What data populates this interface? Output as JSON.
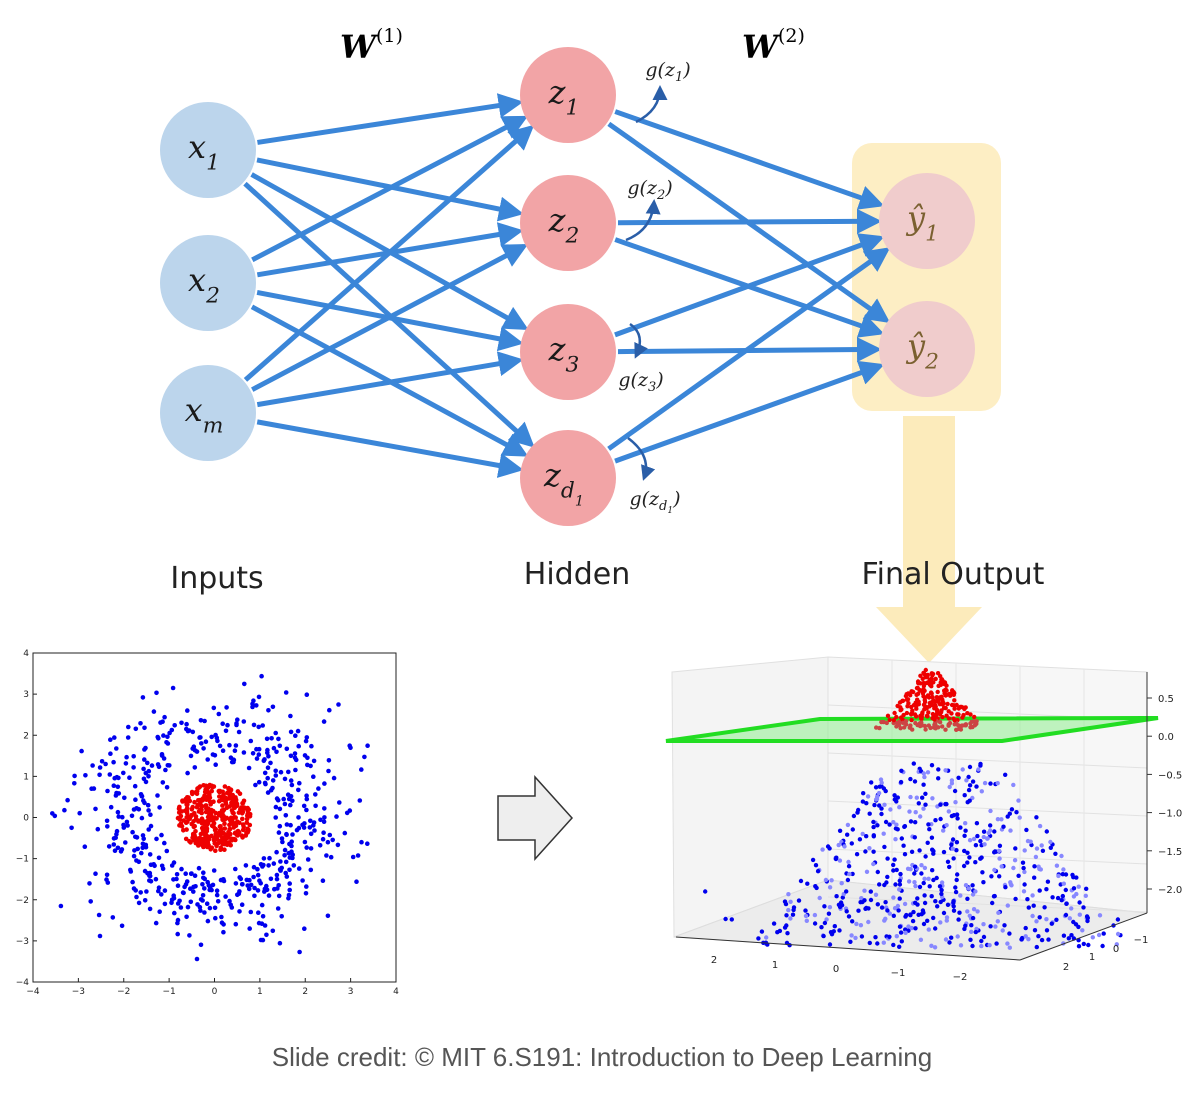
{
  "network": {
    "weights": [
      {
        "base": "W",
        "sup": "(1)"
      },
      {
        "base": "W",
        "sup": "(2)"
      }
    ],
    "inputs": [
      {
        "base": "x",
        "sub": "1"
      },
      {
        "base": "x",
        "sub": "2"
      },
      {
        "base": "x",
        "sub": "m"
      }
    ],
    "hidden": [
      {
        "base": "z",
        "sub": "1"
      },
      {
        "base": "z",
        "sub": "2"
      },
      {
        "base": "z",
        "sub": "3"
      },
      {
        "base": "z",
        "sub": "d",
        "subsub": "1"
      }
    ],
    "outputs": [
      {
        "base": "ŷ",
        "sub": "1"
      },
      {
        "base": "ŷ",
        "sub": "2"
      }
    ],
    "activations": [
      {
        "fn": "g(",
        "base": "z",
        "sub": "1",
        "close": ")"
      },
      {
        "fn": "g(",
        "base": "z",
        "sub": "2",
        "close": ")"
      },
      {
        "fn": "g(",
        "base": "z",
        "sub": "3",
        "close": ")"
      },
      {
        "fn": "g(",
        "base": "z",
        "sub": "d",
        "subsub": "1",
        "close": ")"
      }
    ],
    "layer_labels": {
      "inputs": "Inputs",
      "hidden": "Hidden",
      "output": "Final Output"
    },
    "colors": {
      "input_node": "#bcd5ec",
      "hidden_node": "#f2a4a6",
      "output_node": "#f0cccc",
      "edge": "#3b86d8",
      "highlight": "#fdeec4"
    }
  },
  "chart_data": [
    {
      "type": "scatter",
      "series": [
        {
          "color": "#0000ee",
          "values": [
            [
              -2.4,
              1.3
            ],
            [
              -1.9,
              2.2
            ],
            [
              -1.5,
              -1.8
            ],
            [
              1.8,
              1.4
            ],
            [
              2.5,
              -0.6
            ],
            [
              0.2,
              -2.6
            ],
            [
              -0.6,
              2.6
            ],
            [
              1.2,
              -1.9
            ]
          ]
        },
        {
          "color": "#ee0000",
          "values": [
            [
              0.0,
              0.0
            ],
            [
              0.4,
              0.3
            ],
            [
              -0.5,
              0.2
            ],
            [
              0.2,
              -0.6
            ],
            [
              -0.3,
              -0.4
            ]
          ]
        }
      ],
      "xlim": [
        -4,
        4
      ],
      "ylim": [
        -4,
        4
      ],
      "xticks": [
        "−4",
        "−3",
        "−2",
        "−1",
        "0",
        "1",
        "2",
        "3",
        "4"
      ],
      "yticks": [
        "4",
        "3",
        "2",
        "1",
        "0",
        "−1",
        "−2",
        "−3",
        "−4"
      ]
    },
    {
      "type": "scatter",
      "zticks": [
        "0.5",
        "0.0",
        "−0.5",
        "−1.0",
        "−1.5",
        "−2.0"
      ],
      "xticks": [
        "2",
        "1",
        "0",
        "−1",
        "−2"
      ],
      "yticks": [
        "−1",
        "0",
        "1",
        "2"
      ],
      "zlim": [
        -2.0,
        0.5
      ],
      "series": [
        {
          "color": "#0000ee",
          "values": [
            [
              -2.0,
              -2.0
            ],
            [
              2.0,
              -2.0
            ],
            [
              0.0,
              -1.0
            ]
          ]
        },
        {
          "color": "#ee0000",
          "values": [
            [
              0.0,
              0.5
            ],
            [
              0.2,
              0.1
            ]
          ]
        }
      ]
    }
  ],
  "arrow": {
    "color": "#eeeeee",
    "stroke": "#333333"
  },
  "footer": {
    "credit": "Slide credit: © MIT 6.S191: Introduction to Deep Learning"
  }
}
